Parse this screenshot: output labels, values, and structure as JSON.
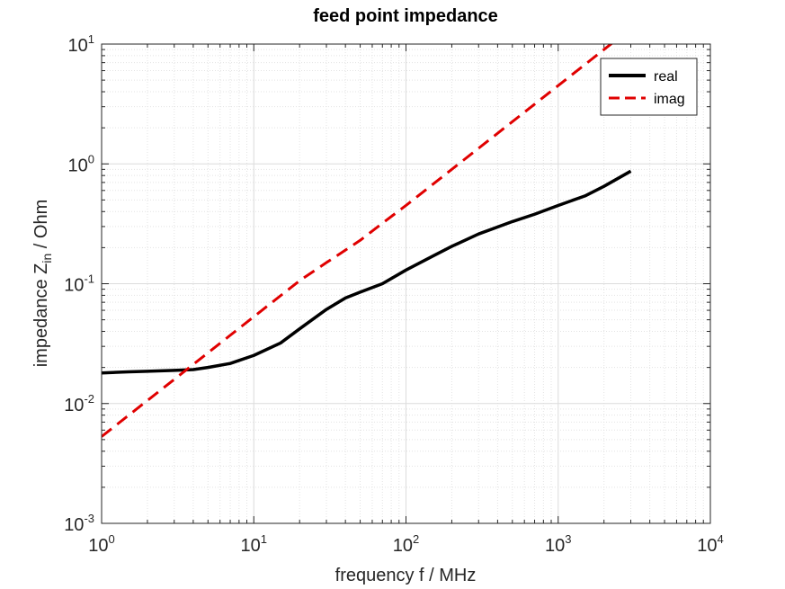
{
  "chart_data": {
    "type": "line",
    "title": "feed point impedance",
    "xlabel": {
      "base": "frequency f / MHz"
    },
    "ylabel": {
      "pre": "impedance Z",
      "sub": "in",
      "post": " / Ohm"
    },
    "xscale": "log",
    "yscale": "log",
    "xlim": [
      1,
      10000
    ],
    "ylim": [
      0.001,
      10
    ],
    "x_ticks": [
      {
        "base": "10",
        "exp": "0"
      },
      {
        "base": "10",
        "exp": "1"
      },
      {
        "base": "10",
        "exp": "2"
      },
      {
        "base": "10",
        "exp": "3"
      },
      {
        "base": "10",
        "exp": "4"
      }
    ],
    "y_ticks": [
      {
        "base": "10",
        "exp": "-3"
      },
      {
        "base": "10",
        "exp": "-2"
      },
      {
        "base": "10",
        "exp": "-1"
      },
      {
        "base": "10",
        "exp": "0"
      },
      {
        "base": "10",
        "exp": "1"
      }
    ],
    "grid": true,
    "minor_grid": true,
    "legend_position": "top-right",
    "series": [
      {
        "name": "real",
        "color": "#000000",
        "style": "solid",
        "points": [
          [
            1,
            0.018
          ],
          [
            1.5,
            0.0184
          ],
          [
            2,
            0.0186
          ],
          [
            3,
            0.0189
          ],
          [
            4,
            0.0192
          ],
          [
            5,
            0.02
          ],
          [
            7,
            0.0216
          ],
          [
            10,
            0.0252
          ],
          [
            15,
            0.032
          ],
          [
            20,
            0.042
          ],
          [
            30,
            0.061
          ],
          [
            40,
            0.076
          ],
          [
            50,
            0.085
          ],
          [
            70,
            0.1
          ],
          [
            100,
            0.13
          ],
          [
            150,
            0.17
          ],
          [
            200,
            0.205
          ],
          [
            300,
            0.26
          ],
          [
            500,
            0.33
          ],
          [
            700,
            0.38
          ],
          [
            1000,
            0.45
          ],
          [
            1500,
            0.54
          ],
          [
            2000,
            0.65
          ],
          [
            3000,
            0.87
          ]
        ]
      },
      {
        "name": "imag",
        "color": "#e00000",
        "style": "dashed",
        "points": [
          [
            1,
            0.0053
          ],
          [
            2,
            0.0106
          ],
          [
            3,
            0.0159
          ],
          [
            5,
            0.0265
          ],
          [
            7,
            0.0371
          ],
          [
            10,
            0.053
          ],
          [
            20,
            0.106
          ],
          [
            30,
            0.15
          ],
          [
            50,
            0.23
          ],
          [
            70,
            0.32
          ],
          [
            100,
            0.45
          ],
          [
            200,
            0.9
          ],
          [
            300,
            1.35
          ],
          [
            500,
            2.25
          ],
          [
            1000,
            4.5
          ],
          [
            2000,
            9.0
          ],
          [
            3000,
            13.5
          ]
        ]
      }
    ]
  }
}
